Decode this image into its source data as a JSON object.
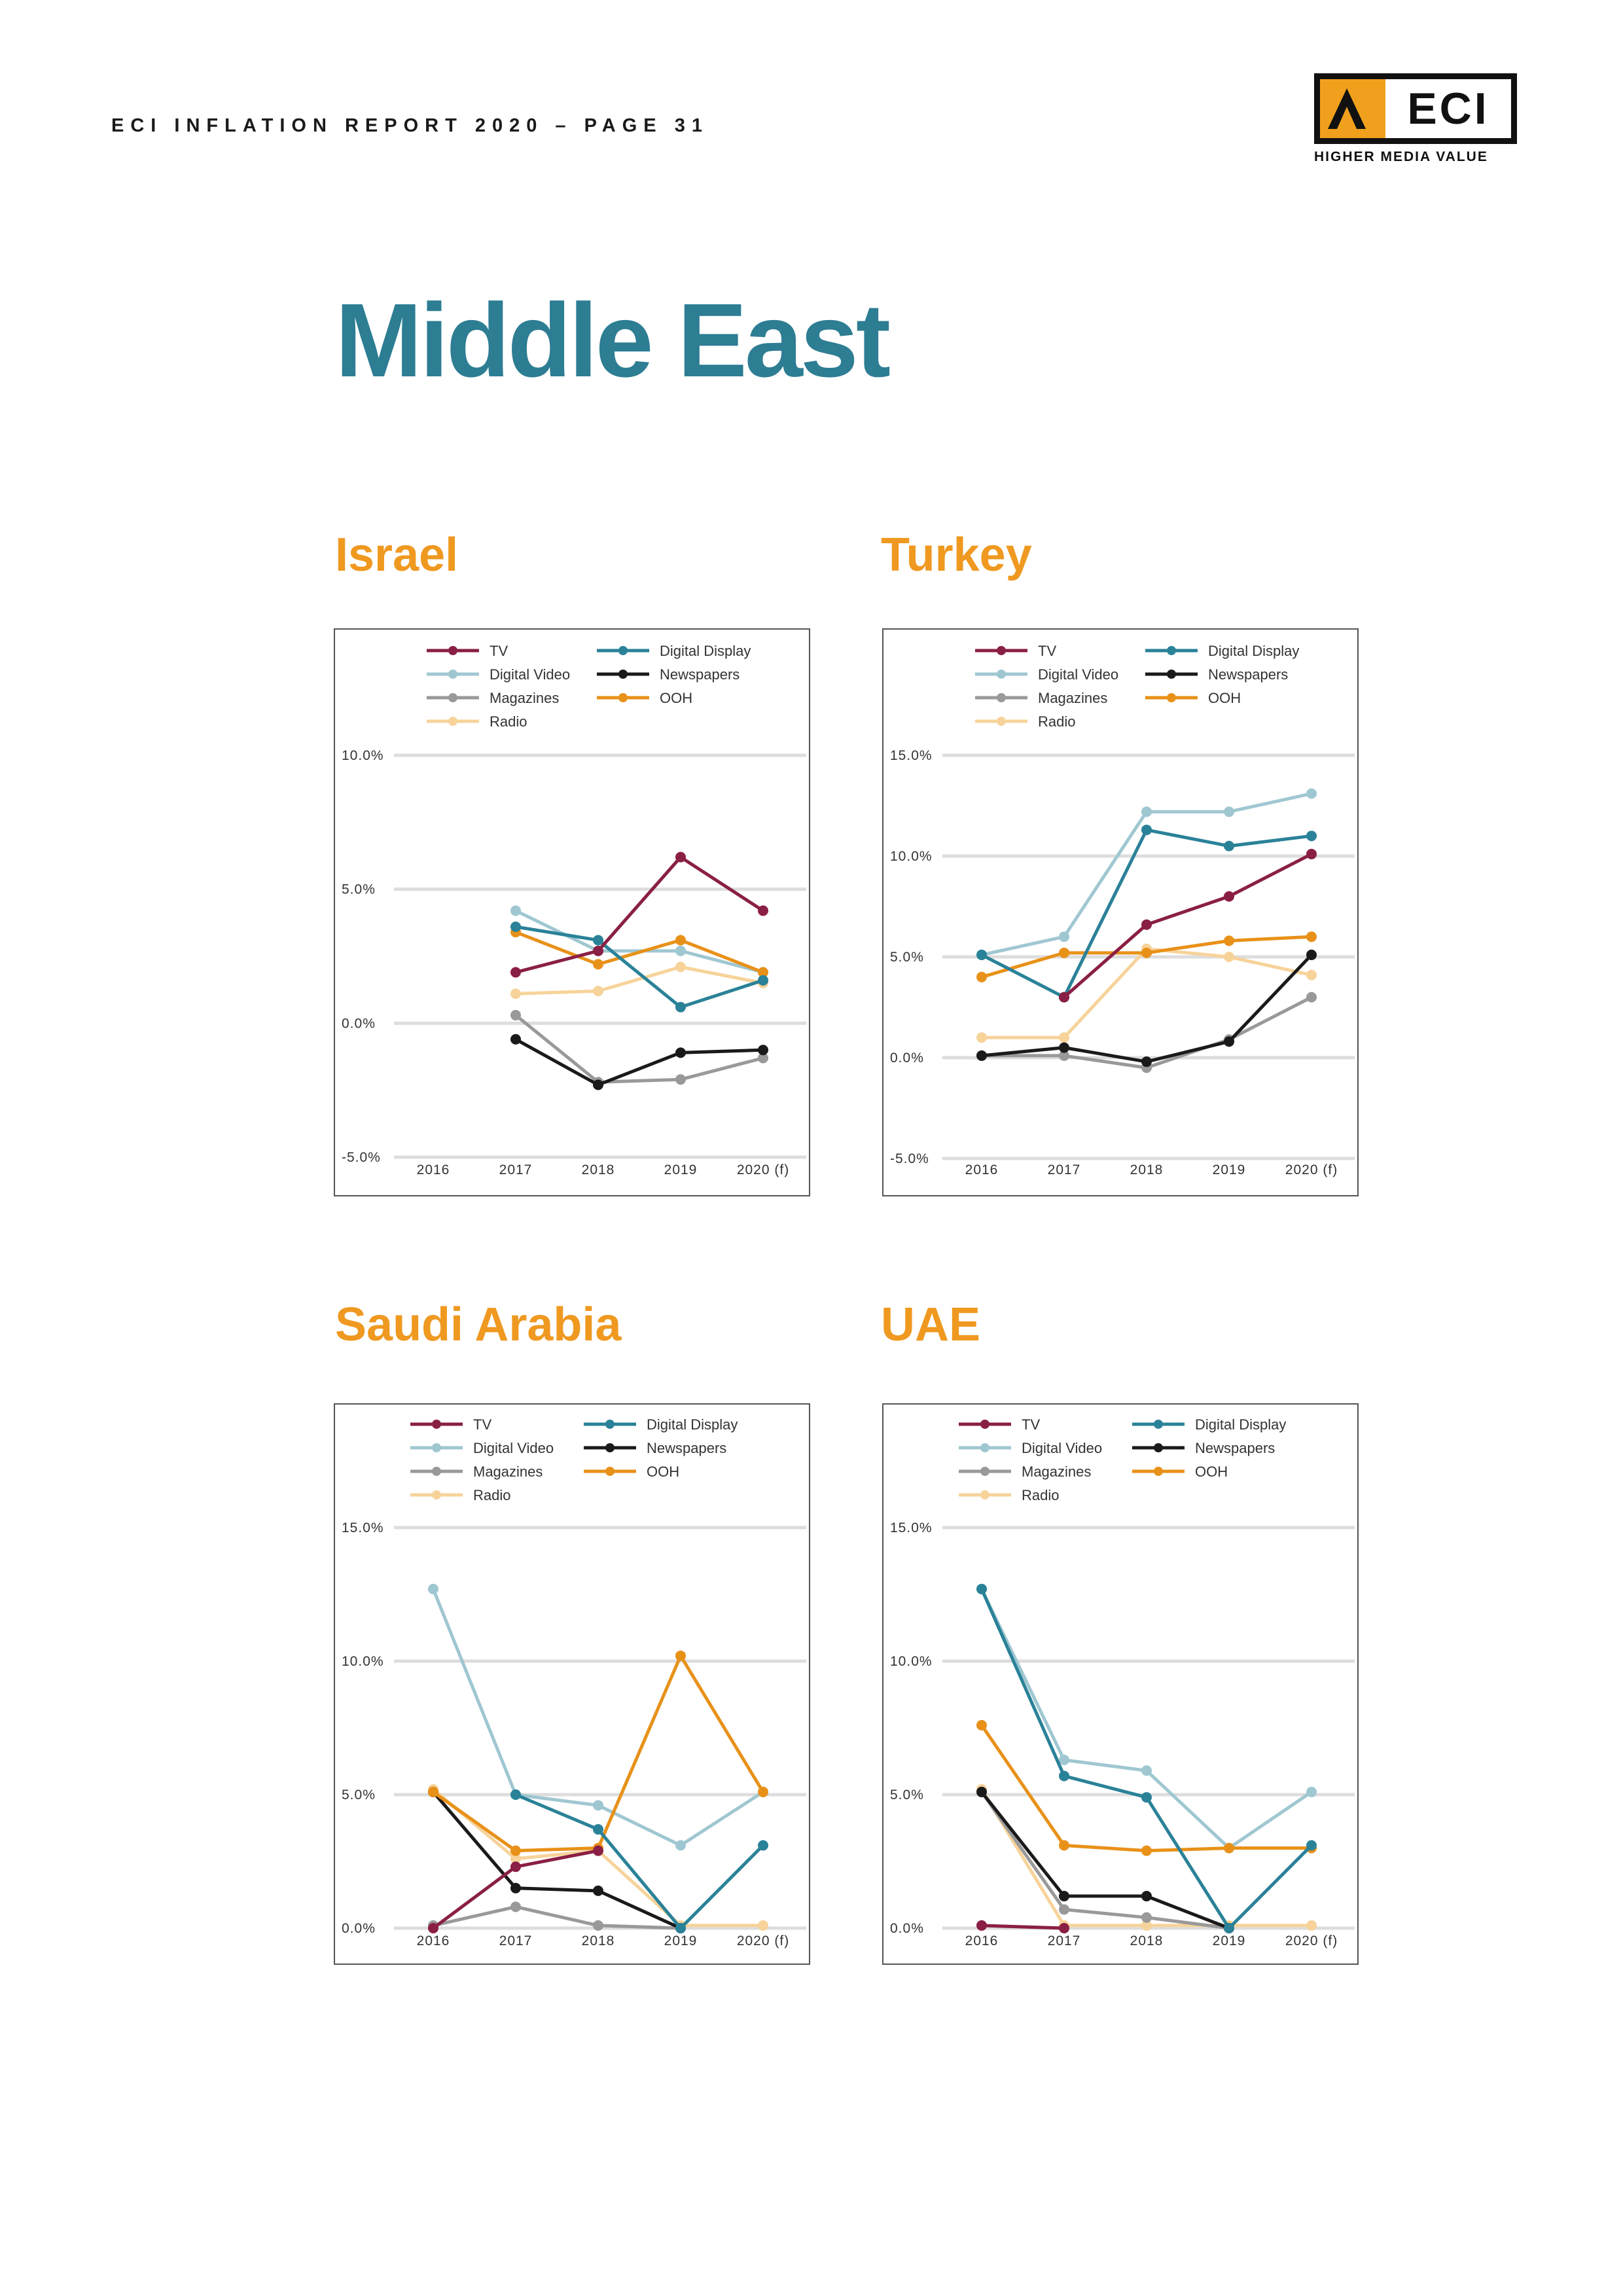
{
  "header": {
    "text": "ECI INFLATION REPORT 2020 – PAGE 31"
  },
  "logo": {
    "mark_icon": "chevron-triangle-icon",
    "name": "ECI",
    "tagline": "HIGHER MEDIA VALUE"
  },
  "page_title": "Middle East",
  "colors": {
    "TV": "#8a1f45",
    "Digital Display": "#2a8298",
    "Digital Video": "#9fc7d1",
    "Newspapers": "#1a1a1a",
    "Magazines": "#999999",
    "OOH": "#e89119",
    "Radio": "#f7d39a",
    "title_blue": "#2d7d93",
    "title_orange": "#ef9920"
  },
  "legend": [
    "TV",
    "Digital Display",
    "Digital Video",
    "Newspapers",
    "Magazines",
    "OOH",
    "Radio"
  ],
  "chart_data": [
    {
      "title": "Israel",
      "type": "line",
      "categories": [
        "2016",
        "2017",
        "2018",
        "2019",
        "2020 (f)"
      ],
      "ylim": [
        -5,
        10
      ],
      "yticks": [
        "10.0%",
        "5.0%",
        "0.0%",
        "-5.0%"
      ],
      "grid": true,
      "legend_position": "top",
      "series": [
        {
          "name": "TV",
          "values": [
            null,
            1.9,
            2.7,
            6.2,
            4.2
          ]
        },
        {
          "name": "Digital Display",
          "values": [
            null,
            3.6,
            3.1,
            0.6,
            1.6
          ]
        },
        {
          "name": "Digital Video",
          "values": [
            null,
            4.2,
            2.7,
            2.7,
            1.9
          ]
        },
        {
          "name": "Newspapers",
          "values": [
            null,
            -0.6,
            -2.3,
            -1.1,
            -1.0
          ]
        },
        {
          "name": "Magazines",
          "values": [
            null,
            0.3,
            -2.2,
            -2.1,
            -1.3
          ]
        },
        {
          "name": "OOH",
          "values": [
            null,
            3.4,
            2.2,
            3.1,
            1.9
          ]
        },
        {
          "name": "Radio",
          "values": [
            null,
            1.1,
            1.2,
            2.1,
            1.5
          ]
        }
      ]
    },
    {
      "title": "Turkey",
      "type": "line",
      "categories": [
        "2016",
        "2017",
        "2018",
        "2019",
        "2020 (f)"
      ],
      "ylim": [
        -5,
        15
      ],
      "yticks": [
        "15.0%",
        "10.0%",
        "5.0%",
        "0.0%",
        "-5.0%"
      ],
      "grid": true,
      "legend_position": "top",
      "series": [
        {
          "name": "TV",
          "values": [
            null,
            3.0,
            6.6,
            8.0,
            10.1
          ]
        },
        {
          "name": "Digital Display",
          "values": [
            5.1,
            3.0,
            11.3,
            10.5,
            11.0
          ]
        },
        {
          "name": "Digital Video",
          "values": [
            5.1,
            6.0,
            12.2,
            12.2,
            13.1
          ]
        },
        {
          "name": "Newspapers",
          "values": [
            0.1,
            0.5,
            -0.2,
            0.8,
            5.1
          ]
        },
        {
          "name": "Magazines",
          "values": [
            0.1,
            0.1,
            -0.5,
            0.9,
            3.0
          ]
        },
        {
          "name": "OOH",
          "values": [
            4.0,
            5.2,
            5.2,
            5.8,
            6.0
          ]
        },
        {
          "name": "Radio",
          "values": [
            1.0,
            1.0,
            5.4,
            5.0,
            4.1
          ]
        }
      ]
    },
    {
      "title": "Saudi Arabia",
      "type": "line",
      "categories": [
        "2016",
        "2017",
        "2018",
        "2019",
        "2020 (f)"
      ],
      "ylim": [
        0,
        15
      ],
      "yticks": [
        "15.0%",
        "10.0%",
        "5.0%",
        "0.0%"
      ],
      "grid": true,
      "legend_position": "top",
      "series": [
        {
          "name": "TV",
          "values": [
            0.0,
            2.3,
            2.9,
            null,
            null
          ]
        },
        {
          "name": "Digital Display",
          "values": [
            null,
            5.0,
            3.7,
            0.0,
            3.1
          ]
        },
        {
          "name": "Digital Video",
          "values": [
            12.7,
            5.0,
            4.6,
            3.1,
            5.1
          ]
        },
        {
          "name": "Newspapers",
          "values": [
            5.1,
            1.5,
            1.4,
            0.0,
            null
          ]
        },
        {
          "name": "Magazines",
          "values": [
            0.1,
            0.8,
            0.1,
            0.0,
            null
          ]
        },
        {
          "name": "OOH",
          "values": [
            5.1,
            2.9,
            3.0,
            10.2,
            5.1
          ]
        },
        {
          "name": "Radio",
          "values": [
            5.2,
            2.6,
            2.9,
            0.1,
            0.1
          ]
        }
      ]
    },
    {
      "title": "UAE",
      "type": "line",
      "categories": [
        "2016",
        "2017",
        "2018",
        "2019",
        "2020 (f)"
      ],
      "ylim": [
        0,
        15
      ],
      "yticks": [
        "15.0%",
        "10.0%",
        "5.0%",
        "0.0%"
      ],
      "grid": true,
      "legend_position": "top",
      "series": [
        {
          "name": "TV",
          "values": [
            0.1,
            0.0,
            null,
            null,
            null
          ]
        },
        {
          "name": "Digital Display",
          "values": [
            12.7,
            5.7,
            4.9,
            0.0,
            3.1
          ]
        },
        {
          "name": "Digital Video",
          "values": [
            12.7,
            6.3,
            5.9,
            3.0,
            5.1
          ]
        },
        {
          "name": "Newspapers",
          "values": [
            5.1,
            1.2,
            1.2,
            0.0,
            null
          ]
        },
        {
          "name": "Magazines",
          "values": [
            5.1,
            0.7,
            0.4,
            0.0,
            null
          ]
        },
        {
          "name": "OOH",
          "values": [
            7.6,
            3.1,
            2.9,
            3.0,
            3.0
          ]
        },
        {
          "name": "Radio",
          "values": [
            5.2,
            0.1,
            0.1,
            0.1,
            0.1
          ]
        }
      ]
    }
  ]
}
